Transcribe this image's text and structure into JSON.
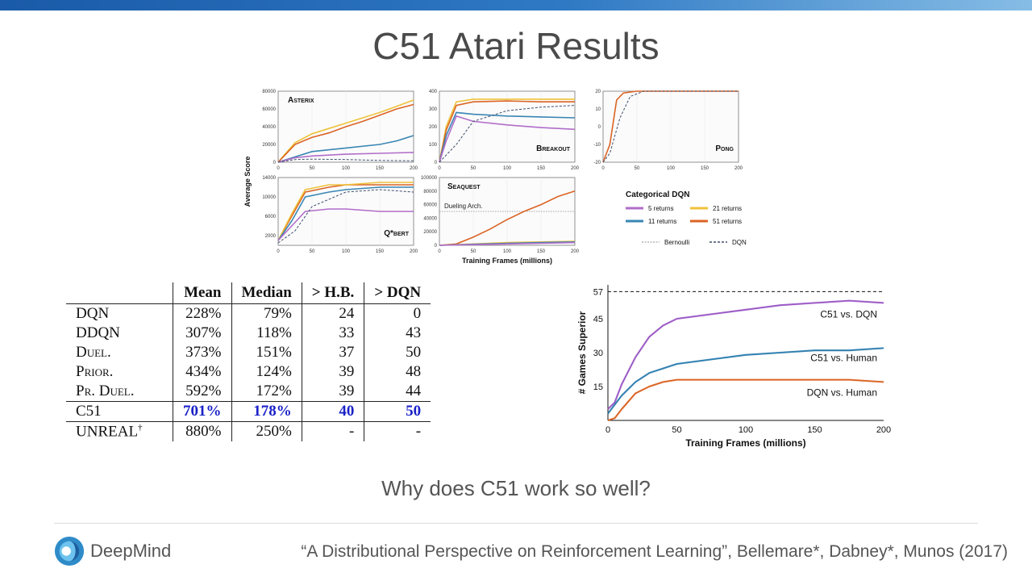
{
  "slide": {
    "title": "C51 Atari Results",
    "question": "Why does C51 work so well?",
    "citation": "“A Distributional Perspective on Reinforcement Learning”, Bellemare*, Dabney*, Munos (2017)",
    "logo_text": "DeepMind",
    "logo_icon": "deepmind-logo-icon"
  },
  "colors": {
    "top_bar": "#1a5aa8",
    "returns_5": "#b16dc9",
    "returns_11": "#3a86b4",
    "returns_21": "#efc23a",
    "returns_51": "#db6424",
    "dqn": "#3e4f6e",
    "bernoulli": "#b5b5b5",
    "table_highlight": "#1a22c8"
  },
  "figure_panels": {
    "y_axis_label": "Average Score",
    "x_axis_label": "Training Frames (millions)",
    "legend": {
      "title": "Categorical DQN",
      "items": [
        "5 returns",
        "11 returns",
        "21 returns",
        "51 returns",
        "Bernoulli",
        "DQN"
      ]
    },
    "dueling_label": "Dueling Arch."
  },
  "table": {
    "headers": [
      "",
      "Mean",
      "Median",
      "> H.B.",
      "> DQN"
    ],
    "rows": [
      {
        "name": "DQN",
        "mean": "228%",
        "median": "79%",
        "hb": "24",
        "dqn": "0"
      },
      {
        "name": "DDQN",
        "mean": "307%",
        "median": "118%",
        "hb": "33",
        "dqn": "43"
      },
      {
        "name": "Duel.",
        "mean": "373%",
        "median": "151%",
        "hb": "37",
        "dqn": "50"
      },
      {
        "name": "Prior.",
        "mean": "434%",
        "median": "124%",
        "hb": "39",
        "dqn": "48"
      },
      {
        "name": "Pr. Duel.",
        "mean": "592%",
        "median": "172%",
        "hb": "39",
        "dqn": "44"
      }
    ],
    "c51": {
      "name": "C51",
      "mean": "701%",
      "median": "178%",
      "hb": "40",
      "dqn": "50"
    },
    "unreal": {
      "name": "UNREAL",
      "dagger": "†",
      "mean": "880%",
      "median": "250%",
      "hb": "-",
      "dqn": "-"
    }
  },
  "chart_data": [
    {
      "type": "line",
      "title": "Asterix",
      "xlim": [
        0,
        200
      ],
      "ylim": [
        0,
        80000
      ],
      "yticks": [
        0,
        20000,
        40000,
        60000,
        80000
      ],
      "xticks": [
        0,
        50,
        100,
        150,
        200
      ],
      "series": [
        {
          "name": "21 returns",
          "color": "#efc23a",
          "x": [
            0,
            10,
            25,
            50,
            75,
            100,
            125,
            150,
            175,
            200
          ],
          "y": [
            0,
            9000,
            22000,
            32000,
            38000,
            44000,
            50000,
            56000,
            63000,
            70000
          ]
        },
        {
          "name": "51 returns",
          "color": "#db6424",
          "x": [
            0,
            10,
            25,
            50,
            75,
            100,
            125,
            150,
            175,
            200
          ],
          "y": [
            0,
            8000,
            20000,
            28000,
            33000,
            40000,
            46000,
            53000,
            60000,
            65000
          ]
        },
        {
          "name": "11 returns",
          "color": "#3a86b4",
          "x": [
            0,
            25,
            50,
            100,
            150,
            175,
            200
          ],
          "y": [
            0,
            6000,
            12000,
            16000,
            20000,
            24000,
            30000
          ]
        },
        {
          "name": "5 returns",
          "color": "#b16dc9",
          "x": [
            0,
            25,
            50,
            100,
            150,
            200
          ],
          "y": [
            0,
            5000,
            7000,
            9000,
            10000,
            11000
          ]
        },
        {
          "name": "DQN",
          "color": "#3e4f6e",
          "x": [
            0,
            25,
            50,
            100,
            150,
            200
          ],
          "y": [
            0,
            3000,
            3500,
            3000,
            2000,
            1500
          ]
        }
      ]
    },
    {
      "type": "line",
      "title": "Breakout",
      "xlim": [
        0,
        200
      ],
      "ylim": [
        0,
        400
      ],
      "yticks": [
        0,
        100,
        200,
        300,
        400
      ],
      "xticks": [
        0,
        50,
        100,
        150,
        200
      ],
      "series": [
        {
          "name": "21 returns",
          "color": "#efc23a",
          "x": [
            0,
            10,
            25,
            50,
            100,
            150,
            200
          ],
          "y": [
            0,
            200,
            340,
            355,
            355,
            355,
            355
          ]
        },
        {
          "name": "51 returns",
          "color": "#db6424",
          "x": [
            0,
            10,
            25,
            50,
            100,
            150,
            200
          ],
          "y": [
            0,
            180,
            320,
            340,
            345,
            340,
            340
          ]
        },
        {
          "name": "11 returns",
          "color": "#3a86b4",
          "x": [
            0,
            10,
            25,
            50,
            100,
            150,
            200
          ],
          "y": [
            0,
            150,
            280,
            270,
            260,
            255,
            250
          ]
        },
        {
          "name": "5 returns",
          "color": "#b16dc9",
          "x": [
            0,
            10,
            25,
            50,
            100,
            150,
            200
          ],
          "y": [
            0,
            120,
            260,
            230,
            210,
            195,
            185
          ]
        },
        {
          "name": "DQN",
          "color": "#3e4f6e",
          "x": [
            0,
            25,
            50,
            100,
            150,
            200
          ],
          "y": [
            0,
            100,
            230,
            290,
            310,
            320
          ]
        }
      ]
    },
    {
      "type": "line",
      "title": "Pong",
      "xlim": [
        0,
        200
      ],
      "ylim": [
        -20,
        20
      ],
      "yticks": [
        -20,
        -10,
        0,
        10,
        20
      ],
      "xticks": [
        0,
        50,
        100,
        150,
        200
      ],
      "series": [
        {
          "name": "51 returns",
          "color": "#db6424",
          "x": [
            0,
            10,
            20,
            30,
            50,
            200
          ],
          "y": [
            -20,
            -10,
            15,
            19,
            20,
            20
          ]
        },
        {
          "name": "DQN",
          "color": "#3e4f6e",
          "x": [
            0,
            10,
            25,
            40,
            60,
            200
          ],
          "y": [
            -20,
            -15,
            5,
            17,
            20,
            20
          ]
        }
      ]
    },
    {
      "type": "line",
      "title": "Q*bert",
      "xlim": [
        0,
        200
      ],
      "ylim": [
        0,
        14000
      ],
      "yticks": [
        2000,
        6000,
        10000,
        14000
      ],
      "xticks": [
        0,
        50,
        100,
        150,
        200
      ],
      "series": [
        {
          "name": "51 returns",
          "color": "#db6424",
          "x": [
            0,
            20,
            40,
            75,
            100,
            150,
            200
          ],
          "y": [
            1000,
            6000,
            11000,
            12000,
            12500,
            12500,
            12500
          ]
        },
        {
          "name": "21 returns",
          "color": "#efc23a",
          "x": [
            0,
            20,
            40,
            75,
            100,
            150,
            200
          ],
          "y": [
            1000,
            6500,
            11500,
            12500,
            12500,
            13000,
            13000
          ]
        },
        {
          "name": "11 returns",
          "color": "#3a86b4",
          "x": [
            0,
            20,
            40,
            75,
            100,
            150,
            200
          ],
          "y": [
            1000,
            5000,
            10000,
            11000,
            11500,
            12000,
            12000
          ]
        },
        {
          "name": "5 returns",
          "color": "#b16dc9",
          "x": [
            0,
            20,
            40,
            75,
            100,
            150,
            200
          ],
          "y": [
            1000,
            4000,
            7000,
            7500,
            7500,
            7000,
            7000
          ]
        },
        {
          "name": "DQN",
          "color": "#3e4f6e",
          "x": [
            0,
            25,
            50,
            100,
            150,
            200
          ],
          "y": [
            500,
            3000,
            8000,
            11000,
            11500,
            11000
          ]
        }
      ]
    },
    {
      "type": "line",
      "title": "Seaquest",
      "xlim": [
        0,
        200
      ],
      "ylim": [
        0,
        100000
      ],
      "yticks": [
        0,
        20000,
        40000,
        60000,
        80000,
        100000
      ],
      "xticks": [
        0,
        50,
        100,
        150,
        200
      ],
      "series": [
        {
          "name": "51 returns",
          "color": "#db6424",
          "x": [
            0,
            25,
            50,
            75,
            100,
            125,
            150,
            175,
            200
          ],
          "y": [
            0,
            2000,
            12000,
            24000,
            38000,
            50000,
            60000,
            72000,
            80000
          ]
        },
        {
          "name": "21 returns",
          "color": "#efc23a",
          "x": [
            0,
            50,
            100,
            150,
            200
          ],
          "y": [
            0,
            2000,
            4000,
            5000,
            6000
          ]
        },
        {
          "name": "11 returns",
          "color": "#3a86b4",
          "x": [
            0,
            50,
            100,
            150,
            200
          ],
          "y": [
            0,
            1500,
            3000,
            4000,
            5000
          ]
        },
        {
          "name": "5 returns",
          "color": "#b16dc9",
          "x": [
            0,
            50,
            100,
            150,
            200
          ],
          "y": [
            0,
            1000,
            2000,
            3000,
            4000
          ]
        }
      ],
      "reference": {
        "label": "Dueling Arch.",
        "y": 50000
      }
    },
    {
      "type": "line",
      "title": "",
      "xlabel": "Training Frames (millions)",
      "ylabel": "# Games Superior",
      "xlim": [
        0,
        200
      ],
      "ylim": [
        0,
        60
      ],
      "xticks": [
        0,
        50,
        100,
        150,
        200
      ],
      "yticks": [
        15,
        30,
        45,
        57
      ],
      "reference": {
        "y": 57,
        "style": "dashed"
      },
      "series": [
        {
          "name": "C51 vs. DQN",
          "color": "#9b59c5",
          "x": [
            0,
            5,
            10,
            20,
            30,
            40,
            50,
            75,
            100,
            125,
            150,
            175,
            200
          ],
          "y": [
            5,
            8,
            16,
            28,
            37,
            42,
            45,
            47,
            49,
            51,
            52,
            53,
            52
          ]
        },
        {
          "name": "C51 vs. Human",
          "color": "#2f7fb0",
          "x": [
            0,
            5,
            10,
            20,
            30,
            40,
            50,
            75,
            100,
            125,
            150,
            175,
            200
          ],
          "y": [
            3,
            7,
            11,
            17,
            21,
            23,
            25,
            27,
            29,
            30,
            31,
            31,
            32
          ]
        },
        {
          "name": "DQN vs. Human",
          "color": "#db6424",
          "x": [
            0,
            5,
            10,
            20,
            30,
            40,
            50,
            75,
            100,
            125,
            150,
            175,
            200
          ],
          "y": [
            0,
            1,
            5,
            12,
            15,
            17,
            18,
            18,
            18,
            18,
            18,
            18,
            17
          ]
        }
      ]
    }
  ]
}
